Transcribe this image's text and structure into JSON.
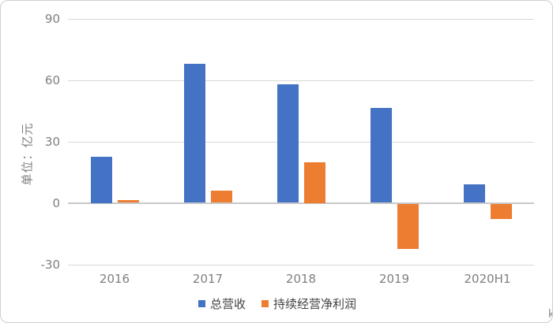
{
  "panel": {
    "background": "#ffffff",
    "border_color": "#cfcfcf"
  },
  "watermark_text": "k",
  "chart_data": {
    "type": "bar",
    "title": "",
    "ylabel": "单位：亿元",
    "xlabel": "",
    "categories": [
      "2016",
      "2017",
      "2018",
      "2019",
      "2020H1"
    ],
    "series": [
      {
        "name": "总营收",
        "color": "#4472c4",
        "values": [
          22.5,
          68,
          58,
          46.5,
          9
        ]
      },
      {
        "name": "持续经营净利润",
        "color": "#ed7d31",
        "values": [
          1.5,
          6,
          20,
          -22,
          -7.5
        ]
      }
    ],
    "ylim": [
      -30,
      90
    ],
    "yticks": [
      90,
      60,
      30,
      0,
      -30
    ],
    "grid": true,
    "gridline_color": "#d9d9d9",
    "axis_text_color": "#7f7f7f",
    "legend_text_color": "#424242",
    "legend_position": "bottom"
  }
}
